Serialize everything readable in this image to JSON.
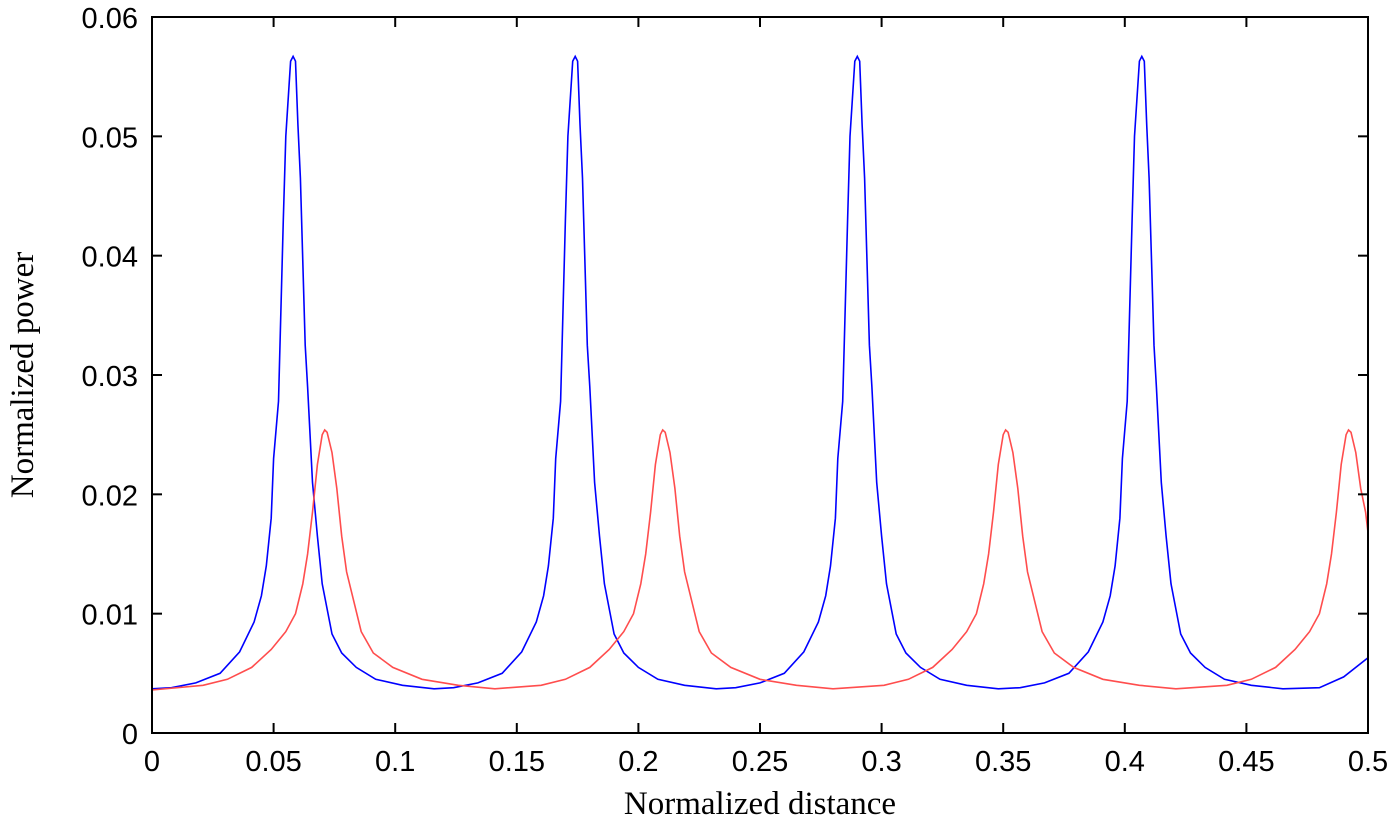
{
  "chart_data": {
    "type": "line",
    "title": "",
    "xlabel": "Normalized distance",
    "ylabel": "Normalized power",
    "xlim": [
      0,
      0.5
    ],
    "ylim": [
      0,
      0.06
    ],
    "grid": false,
    "xticks": [
      0,
      0.05,
      0.1,
      0.15,
      0.2,
      0.25,
      0.3,
      0.35,
      0.4,
      0.45,
      0.5
    ],
    "xtick_labels": [
      "0",
      "0.05",
      "0.1",
      "0.15",
      "0.2",
      "0.25",
      "0.3",
      "0.35",
      "0.4",
      "0.45",
      "0.5"
    ],
    "yticks": [
      0,
      0.01,
      0.02,
      0.03,
      0.04,
      0.05,
      0.06
    ],
    "ytick_labels": [
      "0",
      "0.01",
      "0.02",
      "0.03",
      "0.04",
      "0.05",
      "0.06"
    ],
    "series": [
      {
        "name": "blue",
        "color": "#0000ff",
        "x": [
          0,
          0.008,
          0.018,
          0.028,
          0.036,
          0.042,
          0.045,
          0.047,
          0.049,
          0.05,
          0.052,
          0.054,
          0.055,
          0.057,
          0.058,
          0.059,
          0.06,
          0.061,
          0.063,
          0.064,
          0.066,
          0.068,
          0.07,
          0.074,
          0.078,
          0.084,
          0.092,
          0.103,
          0.116,
          0.124,
          0.134,
          0.144,
          0.152,
          0.158,
          0.161,
          0.163,
          0.165,
          0.166,
          0.168,
          0.17,
          0.171,
          0.173,
          0.174,
          0.175,
          0.176,
          0.177,
          0.179,
          0.18,
          0.182,
          0.184,
          0.186,
          0.19,
          0.194,
          0.2,
          0.208,
          0.219,
          0.232,
          0.24,
          0.25,
          0.26,
          0.268,
          0.274,
          0.277,
          0.279,
          0.281,
          0.282,
          0.284,
          0.286,
          0.287,
          0.289,
          0.29,
          0.291,
          0.292,
          0.293,
          0.295,
          0.296,
          0.298,
          0.3,
          0.302,
          0.306,
          0.31,
          0.316,
          0.324,
          0.335,
          0.348,
          0.357,
          0.367,
          0.377,
          0.385,
          0.391,
          0.394,
          0.396,
          0.398,
          0.399,
          0.401,
          0.403,
          0.404,
          0.406,
          0.407,
          0.408,
          0.409,
          0.41,
          0.412,
          0.413,
          0.415,
          0.417,
          0.419,
          0.423,
          0.427,
          0.433,
          0.441,
          0.452,
          0.465,
          0.48,
          0.49,
          0.5
        ],
        "y": [
          0.0037,
          0.0038,
          0.0042,
          0.005,
          0.0068,
          0.0093,
          0.0115,
          0.014,
          0.018,
          0.023,
          0.0278,
          0.043,
          0.05,
          0.0563,
          0.0567,
          0.0563,
          0.051,
          0.0465,
          0.0325,
          0.029,
          0.021,
          0.0165,
          0.0125,
          0.0083,
          0.0067,
          0.0055,
          0.0045,
          0.004,
          0.0037,
          0.0038,
          0.0042,
          0.005,
          0.0068,
          0.0093,
          0.0115,
          0.014,
          0.018,
          0.023,
          0.0278,
          0.043,
          0.05,
          0.0563,
          0.0567,
          0.0563,
          0.051,
          0.0465,
          0.0325,
          0.029,
          0.021,
          0.0165,
          0.0125,
          0.0083,
          0.0067,
          0.0055,
          0.0045,
          0.004,
          0.0037,
          0.0038,
          0.0042,
          0.005,
          0.0068,
          0.0093,
          0.0115,
          0.014,
          0.018,
          0.023,
          0.0278,
          0.043,
          0.05,
          0.0563,
          0.0567,
          0.0563,
          0.051,
          0.0465,
          0.0325,
          0.029,
          0.021,
          0.0165,
          0.0125,
          0.0083,
          0.0067,
          0.0055,
          0.0045,
          0.004,
          0.0037,
          0.0038,
          0.0042,
          0.005,
          0.0068,
          0.0093,
          0.0115,
          0.014,
          0.018,
          0.023,
          0.0278,
          0.043,
          0.05,
          0.0563,
          0.0567,
          0.0563,
          0.051,
          0.0465,
          0.0325,
          0.029,
          0.021,
          0.0165,
          0.0125,
          0.0083,
          0.0067,
          0.0055,
          0.0045,
          0.004,
          0.0037,
          0.0038,
          0.0047,
          0.0063
        ]
      },
      {
        "name": "red",
        "color": "#ff4d4d",
        "x": [
          0,
          0.021,
          0.031,
          0.041,
          0.049,
          0.055,
          0.059,
          0.062,
          0.064,
          0.066,
          0.068,
          0.07,
          0.071,
          0.072,
          0.074,
          0.076,
          0.078,
          0.08,
          0.083,
          0.086,
          0.091,
          0.099,
          0.111,
          0.126,
          0.141,
          0.16,
          0.17,
          0.18,
          0.188,
          0.194,
          0.198,
          0.201,
          0.203,
          0.205,
          0.207,
          0.209,
          0.21,
          0.211,
          0.213,
          0.215,
          0.217,
          0.219,
          0.222,
          0.225,
          0.23,
          0.238,
          0.25,
          0.265,
          0.28,
          0.301,
          0.311,
          0.321,
          0.329,
          0.335,
          0.339,
          0.342,
          0.344,
          0.346,
          0.348,
          0.35,
          0.351,
          0.352,
          0.354,
          0.356,
          0.358,
          0.36,
          0.363,
          0.366,
          0.371,
          0.379,
          0.391,
          0.406,
          0.421,
          0.442,
          0.452,
          0.462,
          0.47,
          0.476,
          0.48,
          0.483,
          0.485,
          0.487,
          0.489,
          0.491,
          0.492,
          0.493,
          0.495,
          0.497,
          0.499,
          0.5
        ],
        "y": [
          0.0036,
          0.004,
          0.0045,
          0.0055,
          0.007,
          0.0085,
          0.01,
          0.0125,
          0.015,
          0.0185,
          0.0225,
          0.025,
          0.0254,
          0.0252,
          0.0235,
          0.0205,
          0.0165,
          0.0135,
          0.011,
          0.0085,
          0.0067,
          0.0055,
          0.0045,
          0.004,
          0.0037,
          0.004,
          0.0045,
          0.0055,
          0.007,
          0.0085,
          0.01,
          0.0125,
          0.015,
          0.0185,
          0.0225,
          0.025,
          0.0254,
          0.0252,
          0.0235,
          0.0205,
          0.0165,
          0.0135,
          0.011,
          0.0085,
          0.0067,
          0.0055,
          0.0045,
          0.004,
          0.0037,
          0.004,
          0.0045,
          0.0055,
          0.007,
          0.0085,
          0.01,
          0.0125,
          0.015,
          0.0185,
          0.0225,
          0.025,
          0.0254,
          0.0252,
          0.0235,
          0.0205,
          0.0165,
          0.0135,
          0.011,
          0.0085,
          0.0067,
          0.0055,
          0.0045,
          0.004,
          0.0037,
          0.004,
          0.0045,
          0.0055,
          0.007,
          0.0085,
          0.01,
          0.0125,
          0.015,
          0.0185,
          0.0225,
          0.025,
          0.0254,
          0.0252,
          0.0235,
          0.0205,
          0.0185,
          0.0168
        ]
      }
    ]
  }
}
